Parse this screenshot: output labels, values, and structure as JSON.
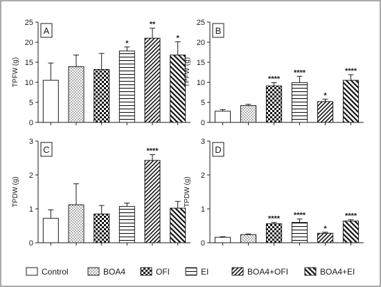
{
  "chart_data": [
    {
      "type": "bar",
      "panel_label": "A",
      "ylabel": "TPFW (g)",
      "ylim": [
        0,
        25
      ],
      "yticks": [
        0,
        5,
        10,
        15,
        20,
        25
      ],
      "categories": [
        "Control",
        "BOA4",
        "OFI",
        "EI",
        "BOA4+OFI",
        "BOA4+EI"
      ],
      "values": [
        10.5,
        13.9,
        13.2,
        17.8,
        21.0,
        16.8
      ],
      "errors": [
        4.3,
        2.9,
        4.0,
        1.0,
        2.5,
        3.3
      ],
      "significance": [
        "",
        "",
        "",
        "*",
        "**",
        "*"
      ],
      "grid": false
    },
    {
      "type": "bar",
      "panel_label": "B",
      "ylabel": "TPFW (g)",
      "ylim": [
        0,
        25
      ],
      "yticks": [
        0,
        5,
        10,
        15,
        20,
        25
      ],
      "categories": [
        "Control",
        "BOA4",
        "OFI",
        "EI",
        "BOA4+OFI",
        "BOA4+EI"
      ],
      "values": [
        2.8,
        4.2,
        9.1,
        9.9,
        5.2,
        10.5
      ],
      "errors": [
        0.4,
        0.3,
        0.8,
        1.6,
        0.6,
        1.4
      ],
      "significance": [
        "",
        "",
        "****",
        "****",
        "*",
        "****"
      ],
      "grid": false
    },
    {
      "type": "bar",
      "panel_label": "C",
      "ylabel": "TPDW (g)",
      "ylim": [
        0,
        3
      ],
      "yticks": [
        0,
        1,
        2,
        3
      ],
      "categories": [
        "Control",
        "BOA4",
        "OFI",
        "EI",
        "BOA4+OFI",
        "BOA4+EI"
      ],
      "values": [
        0.72,
        1.12,
        0.85,
        1.07,
        2.43,
        1.02
      ],
      "errors": [
        0.25,
        0.62,
        0.25,
        0.1,
        0.17,
        0.2
      ],
      "significance": [
        "",
        "",
        "",
        "",
        "****",
        ""
      ],
      "grid": false
    },
    {
      "type": "bar",
      "panel_label": "D",
      "ylabel": "TPDW (g)",
      "ylim": [
        0,
        3
      ],
      "yticks": [
        0,
        1,
        2,
        3
      ],
      "categories": [
        "Control",
        "BOA4",
        "OFI",
        "EI",
        "BOA4+OFI",
        "BOA4+EI"
      ],
      "values": [
        0.16,
        0.24,
        0.56,
        0.6,
        0.28,
        0.64
      ],
      "errors": [
        0.02,
        0.02,
        0.04,
        0.1,
        0.03,
        0.04
      ],
      "significance": [
        "",
        "",
        "****",
        "****",
        "*",
        "****"
      ],
      "grid": false
    }
  ],
  "legend": {
    "placement": "bottom",
    "entries": [
      {
        "label": "Control",
        "pattern": "pat-white"
      },
      {
        "label": "BOA4",
        "pattern": "pat-dots"
      },
      {
        "label": "OFI",
        "pattern": "pat-checker"
      },
      {
        "label": "EI",
        "pattern": "pat-hlines"
      },
      {
        "label": "BOA4+OFI",
        "pattern": "pat-diag-thin"
      },
      {
        "label": "BOA4+EI",
        "pattern": "pat-diag-thick"
      }
    ]
  },
  "colors": {
    "ink": "#1a1a1a",
    "background": "#ffffff",
    "frame": "#555555"
  }
}
